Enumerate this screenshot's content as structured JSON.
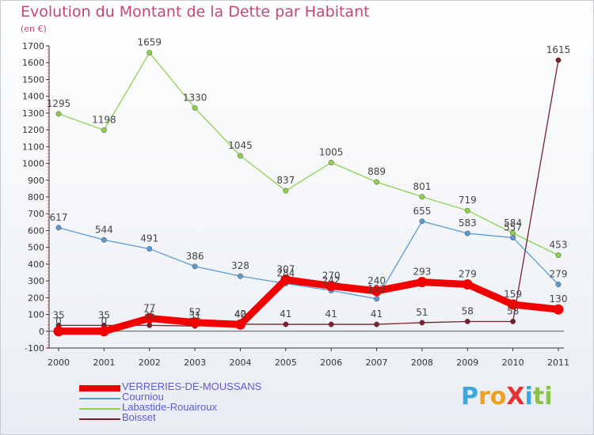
{
  "title": "Evolution du Montant de la Dette par Habitant",
  "subtitle": "(en €)",
  "brand": {
    "text": "ProXiti",
    "letters": [
      {
        "ch": "P",
        "color": "#3aa7e0"
      },
      {
        "ch": "r",
        "color": "#f0a020"
      },
      {
        "ch": "o",
        "color": "#f0a020"
      },
      {
        "ch": "X",
        "color": "#e83030"
      },
      {
        "ch": "i",
        "color": "#3aa7e0"
      },
      {
        "ch": "t",
        "color": "#8bc34a"
      },
      {
        "ch": "i",
        "color": "#8bc34a"
      }
    ]
  },
  "chart_data": {
    "type": "line",
    "x": [
      "2000",
      "2001",
      "2002",
      "2003",
      "2004",
      "2005",
      "2006",
      "2007",
      "2008",
      "2009",
      "2010",
      "2011"
    ],
    "y_ticks": [
      -100,
      0,
      100,
      200,
      300,
      400,
      500,
      600,
      700,
      800,
      900,
      1000,
      1100,
      1200,
      1300,
      1400,
      1500,
      1600,
      1700
    ],
    "ylim": [
      -100,
      1700
    ],
    "grid": false,
    "legend_position": "bottom-left",
    "series": [
      {
        "name": "VERRERIES-DE-MOUSSANS",
        "color": "#f20000",
        "values": [
          0,
          0,
          77,
          52,
          40,
          307,
          270,
          240,
          293,
          279,
          159,
          130
        ],
        "labels": [
          "0",
          "0",
          "77",
          "52",
          "40",
          "307",
          "270",
          "240",
          "293",
          "279",
          "159",
          "130"
        ],
        "thick": true
      },
      {
        "name": "Courniou",
        "color": "#5b9bd5",
        "values": [
          617,
          544,
          491,
          386,
          328,
          284,
          242,
          193,
          655,
          583,
          557,
          279
        ],
        "labels": [
          "617",
          "544",
          "491",
          "386",
          "328",
          "284",
          "242",
          "193",
          "655",
          "583",
          "557",
          "279"
        ],
        "thick": false
      },
      {
        "name": "Labastide-Rouairoux",
        "color": "#8fd14f",
        "values": [
          1295,
          1198,
          1659,
          1330,
          1045,
          837,
          1005,
          889,
          801,
          719,
          584,
          453
        ],
        "labels": [
          "1295",
          "1198",
          "1659",
          "1330",
          "1045",
          "837",
          "1005",
          "889",
          "801",
          "719",
          "584",
          "453"
        ],
        "thick": false
      },
      {
        "name": "Boisset",
        "color": "#7a1f2b",
        "values": [
          35,
          35,
          35,
          31,
          42,
          41,
          41,
          41,
          51,
          58,
          58,
          1615
        ],
        "labels": [
          "35",
          "35",
          "35",
          "31",
          "42",
          "41",
          "41",
          "41",
          "51",
          "58",
          "58",
          "1615"
        ],
        "thick": false
      }
    ]
  }
}
